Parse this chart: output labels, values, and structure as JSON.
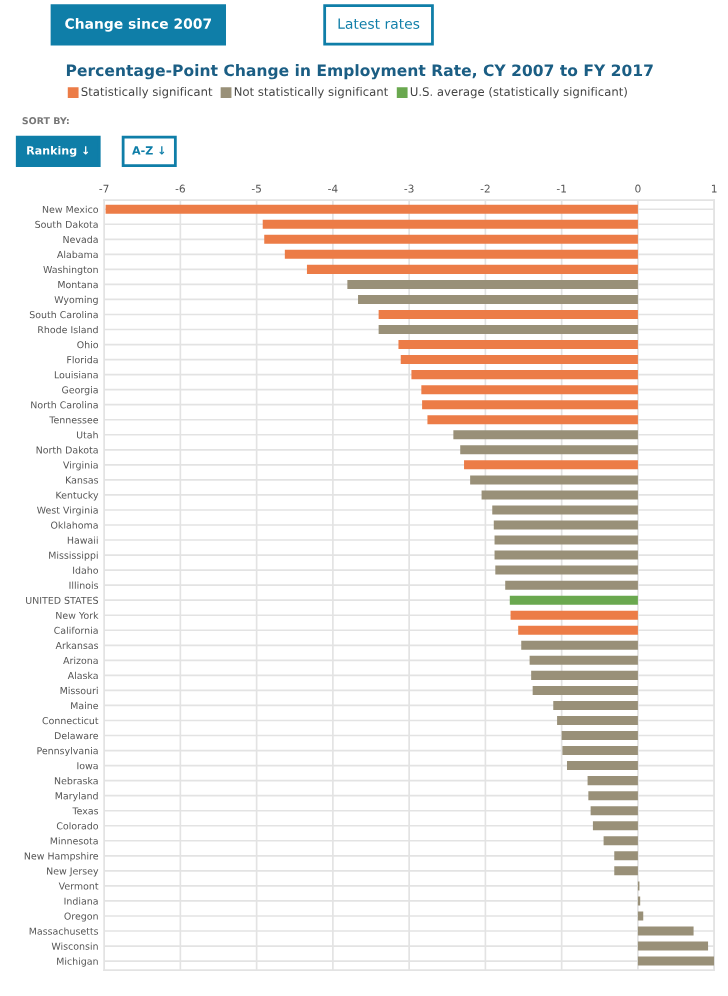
{
  "chart_data": {
    "type": "bar",
    "orientation": "horizontal",
    "title": "Percentage-Point Change in Employment Rate, CY 2007 to FY 2017",
    "annotations": [
      "Change since 2007",
      "Latest rates",
      "SORT BY:",
      "Ranking ↓",
      "A-Z ↓"
    ],
    "categories": [
      "New Mexico",
      "South Dakota",
      "Nevada",
      "Alabama",
      "Washington",
      "Montana",
      "Wyoming",
      "South Carolina",
      "Rhode Island",
      "Ohio",
      "Florida",
      "Louisiana",
      "Georgia",
      "North Carolina",
      "Tennessee",
      "Utah",
      "North Dakota",
      "Virginia",
      "Kansas",
      "Kentucky",
      "West Virginia",
      "Oklahoma",
      "Hawaii",
      "Mississippi",
      "Idaho",
      "Illinois",
      "UNITED STATES",
      "New York",
      "California",
      "Arkansas",
      "Arizona",
      "Alaska",
      "Missouri",
      "Maine",
      "Connecticut",
      "Delaware",
      "Pennsylvania",
      "Iowa",
      "Nebraska",
      "Maryland",
      "Texas",
      "Colorado",
      "Minnesota",
      "New Hampshire",
      "New Jersey",
      "Vermont",
      "Indiana",
      "Oregon",
      "Massachusetts",
      "Wisconsin",
      "Michigan"
    ],
    "series": [
      {
        "name": "Statistically significant",
        "color": "#ec7c47",
        "values": [
          -6.98,
          -4.92,
          -4.9,
          -4.63,
          -4.34,
          null,
          null,
          -3.4,
          null,
          -3.14,
          -3.11,
          -2.97,
          -2.84,
          -2.83,
          -2.76,
          null,
          null,
          -2.28,
          null,
          null,
          null,
          null,
          null,
          null,
          null,
          null,
          null,
          -1.67,
          -1.57,
          null,
          null,
          null,
          null,
          null,
          null,
          null,
          null,
          null,
          null,
          null,
          null,
          null,
          null,
          null,
          null,
          null,
          null,
          null,
          null,
          null,
          null
        ]
      },
      {
        "name": "Not statistically significant",
        "color": "#999078",
        "values": [
          null,
          null,
          null,
          null,
          null,
          -3.81,
          -3.67,
          null,
          -3.4,
          null,
          null,
          null,
          null,
          null,
          null,
          -2.42,
          -2.33,
          null,
          -2.2,
          -2.05,
          -1.91,
          -1.89,
          -1.88,
          -1.88,
          -1.87,
          -1.74,
          null,
          null,
          null,
          -1.53,
          -1.42,
          -1.4,
          -1.38,
          -1.11,
          -1.06,
          -1.0,
          -0.99,
          -0.93,
          -0.66,
          -0.65,
          -0.62,
          -0.59,
          -0.45,
          -0.31,
          -0.31,
          0.02,
          0.03,
          0.07,
          0.73,
          0.92,
          1.0
        ]
      },
      {
        "name": "U.S. average (statistically significant)",
        "color": "#6aa84f",
        "values": [
          null,
          null,
          null,
          null,
          null,
          null,
          null,
          null,
          null,
          null,
          null,
          null,
          null,
          null,
          null,
          null,
          null,
          null,
          null,
          null,
          null,
          null,
          null,
          null,
          null,
          null,
          -1.68,
          null,
          null,
          null,
          null,
          null,
          null,
          null,
          null,
          null,
          null,
          null,
          null,
          null,
          null,
          null,
          null,
          null,
          null,
          null,
          null,
          null,
          null,
          null,
          null
        ]
      }
    ],
    "xlim": [
      -7,
      1
    ],
    "xticks": [
      -7,
      -6,
      -5,
      -4,
      -3,
      -2,
      -1,
      0,
      1
    ],
    "grid": true,
    "legend": "top left"
  }
}
